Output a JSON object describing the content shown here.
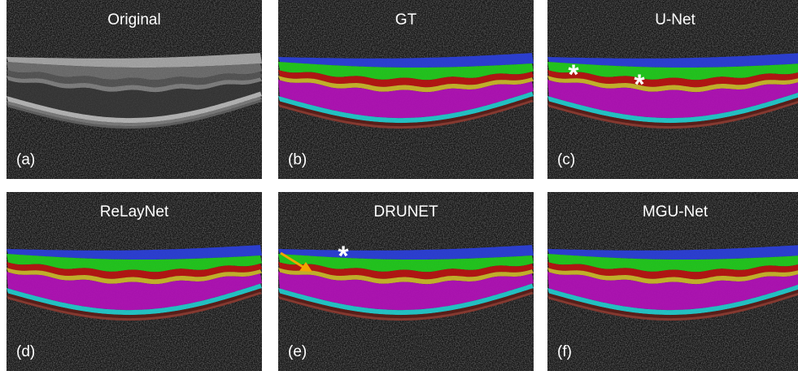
{
  "panels": [
    {
      "title": "Original",
      "label": "(a)",
      "segmented": false,
      "markers": []
    },
    {
      "title": "GT",
      "label": "(b)",
      "segmented": true,
      "markers": []
    },
    {
      "title": "U-Net",
      "label": "(c)",
      "segmented": true,
      "markers": [
        "*",
        "*"
      ]
    },
    {
      "title": "ReLayNet",
      "label": "(d)",
      "segmented": true,
      "markers": []
    },
    {
      "title": "DRUNET",
      "label": "(e)",
      "segmented": true,
      "markers": [
        "*"
      ]
    },
    {
      "title": "MGU-Net",
      "label": "(f)",
      "segmented": true,
      "markers": []
    }
  ]
}
